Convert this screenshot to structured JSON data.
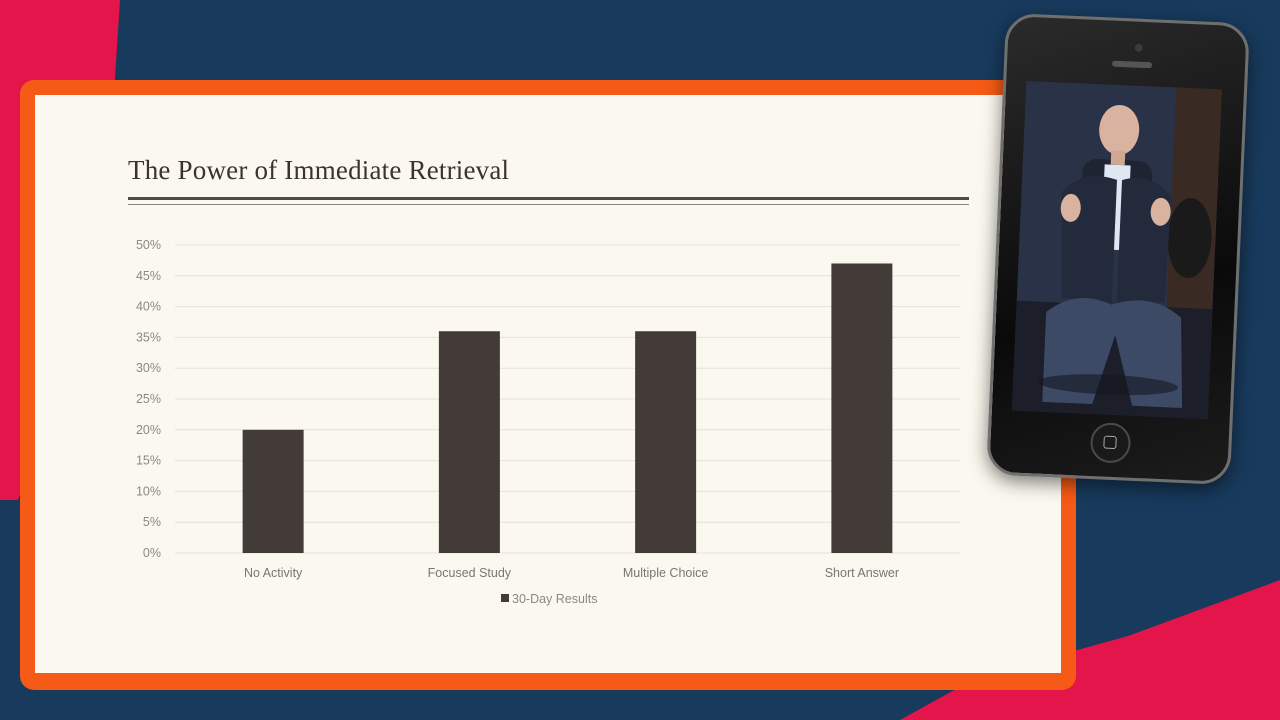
{
  "slide": {
    "title": "The Power of Immediate Retrieval"
  },
  "chart_data": {
    "type": "bar",
    "title": "",
    "categories": [
      "No Activity",
      "Focused Study",
      "Multiple Choice",
      "Short Answer"
    ],
    "series": [
      {
        "name": "30-Day Results",
        "values": [
          20,
          36,
          36,
          47
        ],
        "color": "#433b38"
      }
    ],
    "y_ticks": [
      "0%",
      "5%",
      "10%",
      "15%",
      "20%",
      "25%",
      "30%",
      "35%",
      "40%",
      "45%",
      "50%"
    ],
    "ylim": [
      0,
      50
    ],
    "y_unit": "%",
    "grid": true,
    "legend_position": "bottom"
  },
  "colors": {
    "background": "#183a5c",
    "accent_red": "#e3154a",
    "frame_orange": "#f55a16",
    "slide_bg": "#fbf9ef"
  },
  "phone": {
    "icon": "smartphone-icon",
    "content": "presenter-video"
  }
}
